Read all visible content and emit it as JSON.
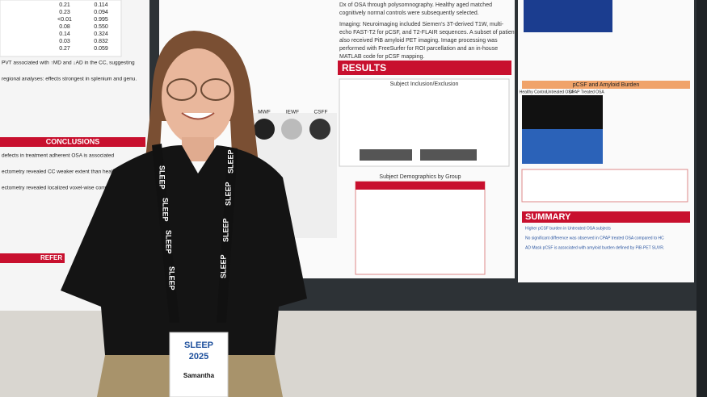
{
  "left_poster": {
    "rows": [
      [
        "0.21",
        "0.114"
      ],
      [
        "0.23",
        "0.094"
      ],
      [
        "<0.01",
        "0.995"
      ],
      [
        "0.08",
        "0.550"
      ],
      [
        "0.14",
        "0.324"
      ],
      [
        "0.03",
        "0.832"
      ],
      [
        "0.27",
        "0.059"
      ]
    ],
    "conclusions_heading": "CONCLUSIONS",
    "lines": [
      "PVT associated with ↑MD and ↓AD in the CC, suggesting",
      "regional analyses: effects strongest in splenium and genu.",
      "defects in treatment adherent OSA is associated",
      "ectometry revealed CC weaker extent than healthy",
      "ectometry revealed localized voxel-wise correlations"
    ],
    "reference_heading": "REFER"
  },
  "center_poster": {
    "intro_lines": [
      "Dx of OSA through polysomnography. Healthy aged matched",
      "cognitively normal controls were subsequently selected."
    ],
    "imaging_lines": [
      "Imaging: Neuroimaging included Siemen's 3T-derived T1W, multi-",
      "echo FAST-T2 for pCSF, and T2-FLAIR sequences. A subset of patients",
      "also received PiB amyloid PET imaging. Image processing was",
      "performed with FreeSurfer for ROI parcellation and an in-house",
      "MATLAB code for pCSF mapping."
    ],
    "results_heading": "RESULTS",
    "inclusion_title": "Subject Inclusion/Exclusion",
    "demographics_title": "Subject Demographics by Group",
    "figure_labels": [
      "MWF",
      "IEWF",
      "CSFF"
    ]
  },
  "right_poster": {
    "group_labels": [
      "Healthy Control",
      "Untreated OSA",
      "CPAP Treated OSA"
    ],
    "amyloid_title": "pCSF and Amyloid Burden",
    "summary_heading": "SUMMARY",
    "summary_lines": [
      "Higher pCSF burden in Untreated OSA subjects",
      "No significant difference was observed in CPAP treated OSA compared to HC",
      "AD Mask pCSF is associated with amyloid burden defined by PiB-PET SUVR."
    ]
  },
  "badge": {
    "lanyard": "SLEEP",
    "event": "SLEEP",
    "year": "2025",
    "name": "Samantha"
  }
}
